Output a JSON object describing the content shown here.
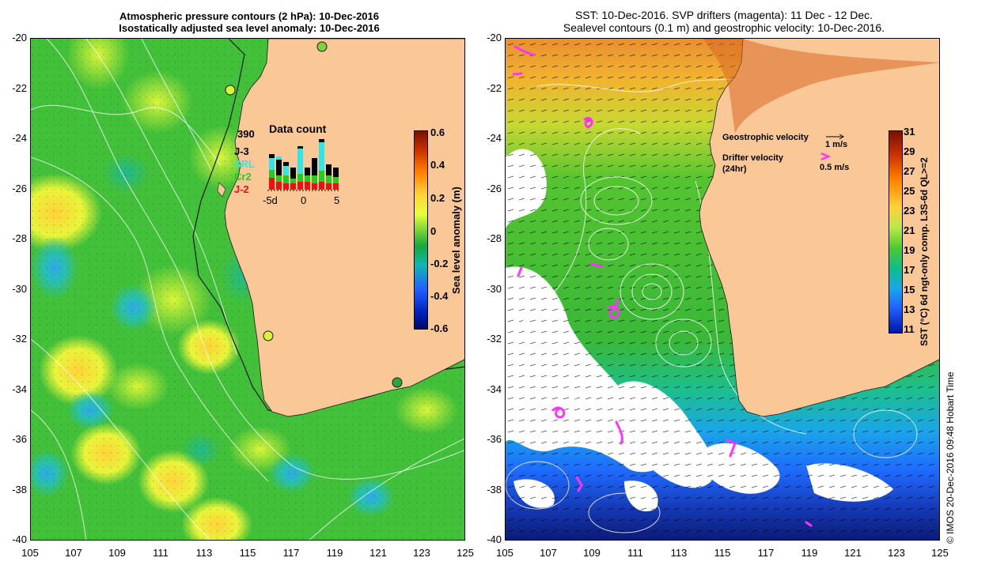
{
  "left_panel": {
    "title_line1": "Atmospheric pressure contours (2 hPa): 10-Dec-2016",
    "title_line2": "Isostatically adjusted sea level anomaly: 10-Dec-2016",
    "colorbar_label": "Sea level anomaly (m)",
    "colorbar_ticks": [
      "0.6",
      "0.4",
      "0.2",
      "0",
      "-0.2",
      "-0.4",
      "-0.6"
    ]
  },
  "right_panel": {
    "title_line1": "SST: 10-Dec-2016. SVP drifters (magenta): 11 Dec - 12 Dec.",
    "title_line2": "Sealevel contours (0.1 m) and geostrophic velocity: 10-Dec-2016.",
    "colorbar_label": "SST (°C) 6d ngt-only comp. L3S-6d QL>=2",
    "colorbar_ticks": [
      "31",
      "29",
      "27",
      "25",
      "23",
      "21",
      "19",
      "17",
      "15",
      "13",
      "11"
    ],
    "geo_velocity_label": "Geostrophic velocity",
    "geo_velocity_scale": "1 m/s",
    "drifter_label_line1": "Drifter velocity",
    "drifter_label_line2": "(24hr)",
    "drifter_scale": "0.5 m/s"
  },
  "y_axis_labels": [
    "-20",
    "-22",
    "-24",
    "-26",
    "-28",
    "-30",
    "-32",
    "-34",
    "-36",
    "-38",
    "-40"
  ],
  "x_axis_labels": [
    "105",
    "107",
    "109",
    "111",
    "113",
    "115",
    "117",
    "119",
    "121",
    "123",
    "125"
  ],
  "data_count": {
    "title": "Data count",
    "total": "390",
    "legend": [
      {
        "label": "J-3",
        "color": "#000000"
      },
      {
        "label": "SRL",
        "color": "#33e6e6"
      },
      {
        "label": "Cr2",
        "color": "#22cc22"
      },
      {
        "label": "J-2",
        "color": "#ee1111"
      }
    ],
    "x_labels": [
      "-5d",
      "0",
      "5"
    ]
  },
  "credit": "© IMOS 20-Dec-2016 09:48 Hobart Time",
  "colors": {
    "land": "#fac896",
    "drifter": "#ff33ff"
  }
}
